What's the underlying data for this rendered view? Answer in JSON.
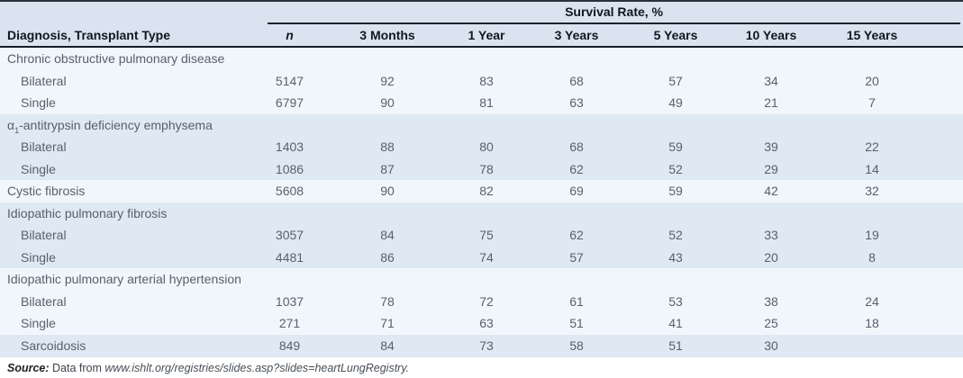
{
  "table": {
    "spanner": "Survival Rate, %",
    "columns": [
      "Diagnosis, Transplant Type",
      "n",
      "3 Months",
      "1 Year",
      "3 Years",
      "5 Years",
      "10 Years",
      "15 Years"
    ],
    "rows": [
      {
        "type": "section",
        "band": "pale",
        "label": "Chronic obstructive pulmonary disease"
      },
      {
        "type": "sub",
        "band": "pale",
        "label": "Bilateral",
        "values": [
          "5147",
          "92",
          "83",
          "68",
          "57",
          "34",
          "20"
        ]
      },
      {
        "type": "sub",
        "band": "pale",
        "label": "Single",
        "values": [
          "6797",
          "90",
          "81",
          "63",
          "49",
          "21",
          "7"
        ]
      },
      {
        "type": "section",
        "band": "blue",
        "label_parts": [
          "α",
          "1",
          "-antitrypsin deficiency emphysema"
        ]
      },
      {
        "type": "sub",
        "band": "blue",
        "label": "Bilateral",
        "values": [
          "1403",
          "88",
          "80",
          "68",
          "59",
          "39",
          "22"
        ]
      },
      {
        "type": "sub",
        "band": "blue",
        "label": "Single",
        "values": [
          "1086",
          "87",
          "78",
          "62",
          "52",
          "29",
          "14"
        ]
      },
      {
        "type": "single",
        "band": "pale",
        "label": "Cystic fibrosis",
        "values": [
          "5608",
          "90",
          "82",
          "69",
          "59",
          "42",
          "32"
        ]
      },
      {
        "type": "section",
        "band": "blue",
        "label": "Idiopathic pulmonary fibrosis"
      },
      {
        "type": "sub",
        "band": "blue",
        "label": "Bilateral",
        "values": [
          "3057",
          "84",
          "75",
          "62",
          "52",
          "33",
          "19"
        ]
      },
      {
        "type": "sub",
        "band": "blue",
        "label": "Single",
        "values": [
          "4481",
          "86",
          "74",
          "57",
          "43",
          "20",
          "8"
        ]
      },
      {
        "type": "section",
        "band": "pale",
        "label": "Idiopathic pulmonary arterial hypertension"
      },
      {
        "type": "sub",
        "band": "pale",
        "label": "Bilateral",
        "values": [
          "1037",
          "78",
          "72",
          "61",
          "53",
          "38",
          "24"
        ]
      },
      {
        "type": "sub",
        "band": "pale",
        "label": "Single",
        "values": [
          "271",
          "71",
          "63",
          "51",
          "41",
          "25",
          "18"
        ]
      },
      {
        "type": "sub",
        "band": "blue",
        "label": "Sarcoidosis",
        "values": [
          "849",
          "84",
          "73",
          "58",
          "51",
          "30",
          ""
        ]
      }
    ]
  },
  "footer": {
    "source_label": "Source:",
    "text": " Data from ",
    "url": "www.ishlt.org/registries/slides.asp?slides=heartLungRegistry."
  },
  "colors": {
    "header_band": "#d9e4f0",
    "band_blue": "#dfe9f4",
    "band_pale": "#f0f6fb",
    "rule_dark": "#161d26",
    "header_text": "#0f1822",
    "body_text": "#57616b"
  }
}
